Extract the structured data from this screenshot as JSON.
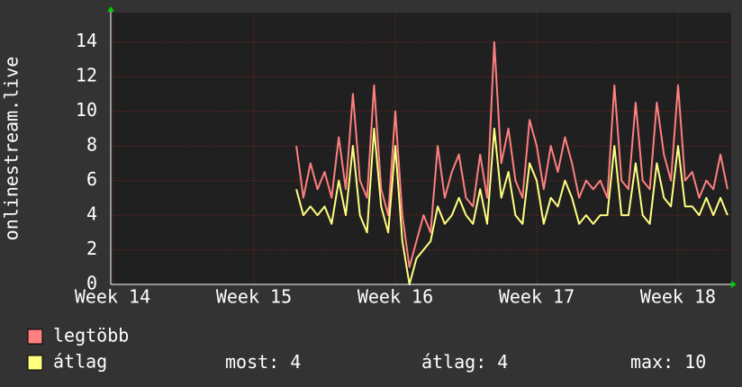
{
  "chart_data": {
    "type": "line",
    "ylabel": "onlinestream.live",
    "xlim": [
      14,
      18.39
    ],
    "xticks": [
      {
        "value": 14,
        "label": "Week 14"
      },
      {
        "value": 15,
        "label": "Week 15"
      },
      {
        "value": 16,
        "label": "Week 16"
      },
      {
        "value": 17,
        "label": "Week 17"
      },
      {
        "value": 18,
        "label": "Week 18"
      }
    ],
    "ylim": [
      0,
      15.7
    ],
    "yticks": [
      0,
      2,
      4,
      6,
      8,
      10,
      12,
      14
    ],
    "grid": true,
    "x": [
      15.3,
      15.35,
      15.4,
      15.45,
      15.5,
      15.55,
      15.6,
      15.65,
      15.7,
      15.75,
      15.8,
      15.85,
      15.9,
      15.95,
      16.0,
      16.05,
      16.1,
      16.15,
      16.2,
      16.25,
      16.3,
      16.35,
      16.4,
      16.45,
      16.5,
      16.55,
      16.6,
      16.65,
      16.7,
      16.75,
      16.8,
      16.85,
      16.9,
      16.95,
      17.0,
      17.05,
      17.1,
      17.15,
      17.2,
      17.25,
      17.3,
      17.35,
      17.4,
      17.45,
      17.5,
      17.55,
      17.6,
      17.65,
      17.7,
      17.75,
      17.8,
      17.85,
      17.9,
      17.95,
      18.0,
      18.05,
      18.1,
      18.15,
      18.2,
      18.25,
      18.3,
      18.35
    ],
    "series": [
      {
        "name": "legtöbb",
        "color": "#ff7f7f",
        "values": [
          8,
          5,
          7,
          5.5,
          6.5,
          5,
          8.5,
          5.5,
          11,
          6,
          5,
          11.5,
          5.5,
          4,
          10,
          4,
          1,
          2.5,
          4,
          3,
          8,
          5,
          6.5,
          7.5,
          5,
          4.5,
          7.5,
          5,
          14,
          7,
          9,
          6,
          5,
          9.5,
          8,
          5.5,
          8,
          6.5,
          8.5,
          7,
          5,
          6,
          5.5,
          6,
          5,
          11.5,
          6,
          5.5,
          10.5,
          6,
          5.5,
          10.5,
          7.5,
          6,
          11.5,
          6,
          6.5,
          5,
          6,
          5.5,
          7.5,
          5.5
        ]
      },
      {
        "name": "átlag",
        "color": "#ffff80",
        "values": [
          5.5,
          4,
          4.5,
          4,
          4.5,
          3.5,
          6,
          4,
          8,
          4,
          3,
          9,
          4.5,
          3,
          8,
          2.5,
          0,
          1.5,
          2,
          2.5,
          4.5,
          3.5,
          4,
          5,
          4,
          3.5,
          5.5,
          3.5,
          9,
          5,
          6.5,
          4,
          3.5,
          7,
          6,
          3.5,
          5,
          4.5,
          6,
          5,
          3.5,
          4,
          3.5,
          4,
          4,
          8,
          4,
          4,
          7,
          4,
          3.5,
          7,
          5,
          4.5,
          8,
          4.5,
          4.5,
          4,
          5,
          4,
          5,
          4
        ]
      }
    ],
    "stats": [
      {
        "label": "most:",
        "value": 4
      },
      {
        "label": "átlag:",
        "value": 4
      },
      {
        "label": "max:",
        "value": 10
      }
    ]
  }
}
